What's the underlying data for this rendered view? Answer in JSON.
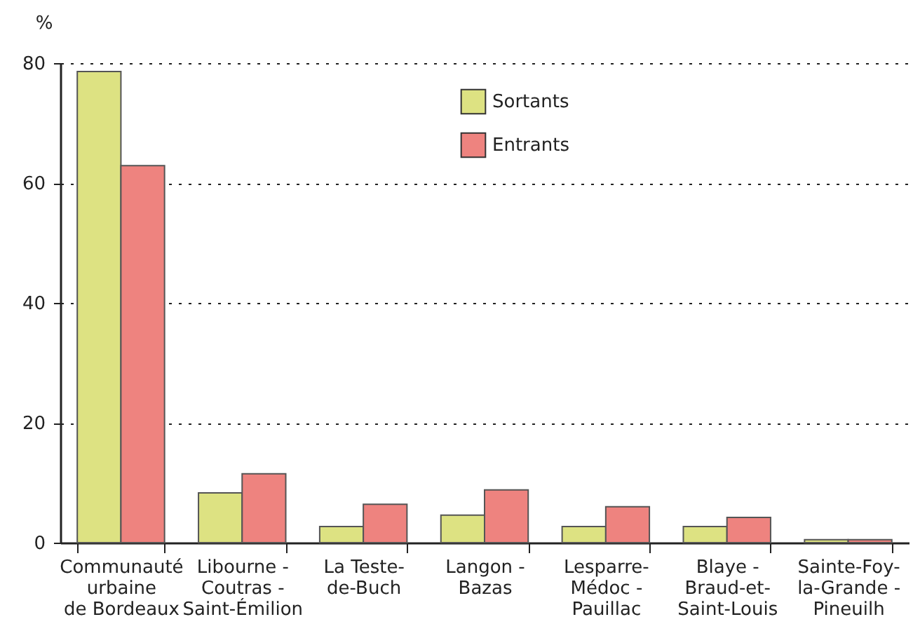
{
  "chart_data": {
    "type": "bar",
    "ylabel": "%",
    "categories": [
      "Communauté\nurbaine\nde Bordeaux",
      "Libourne -\nCoutras -\nSaint-Émilion",
      "La Teste-\nde-Buch",
      "Langon -\nBazas",
      "Lesparre-\nMédoc -\nPauillac",
      "Blaye -\nBraud-et-\nSaint-Louis",
      "Sainte-Foy-\nla-Grande -\nPineuilh"
    ],
    "series": [
      {
        "name": "Sortants",
        "color": "#dde282",
        "values": [
          78.6,
          8.3,
          2.7,
          4.6,
          2.7,
          2.7,
          0.5
        ]
      },
      {
        "name": "Entrants",
        "color": "#ee837f",
        "values": [
          62.9,
          11.5,
          6.4,
          8.8,
          6.0,
          4.2,
          0.5
        ]
      }
    ],
    "ylim": [
      0,
      80
    ],
    "yticks": [
      0,
      20,
      40,
      60,
      80
    ],
    "grid": "y",
    "legend": "top"
  }
}
